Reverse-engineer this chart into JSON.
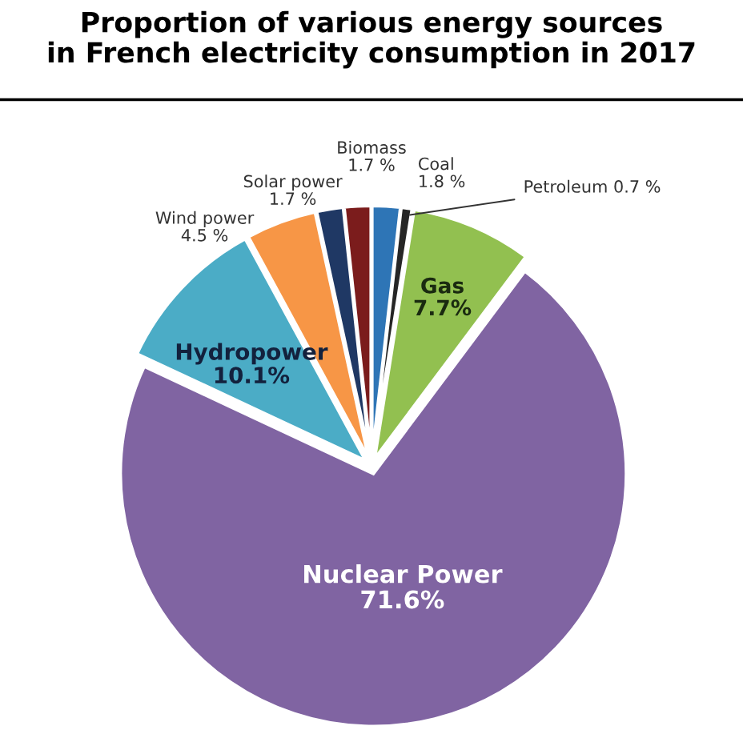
{
  "chart_data": {
    "type": "pie",
    "title": "Proportion of various energy sources\nin French electricity consumption in 2017",
    "categories": [
      "Coal",
      "Petroleum",
      "Gas",
      "Nuclear Power",
      "Hydropower",
      "Wind power",
      "Solar power",
      "Biomass"
    ],
    "values": [
      1.8,
      0.7,
      7.7,
      71.6,
      10.1,
      4.5,
      1.7,
      1.7
    ],
    "value_labels": [
      "1.8 %",
      "0.7 %",
      "7.7%",
      "71.6%",
      "10.1%",
      "4.5 %",
      "1.7 %",
      "1.7 %"
    ],
    "colors": [
      "#2e75b6",
      "#262626",
      "#92c050",
      "#8064a2",
      "#4bacc6",
      "#f79646",
      "#1f3864",
      "#7b1c1c"
    ],
    "legend": false
  }
}
